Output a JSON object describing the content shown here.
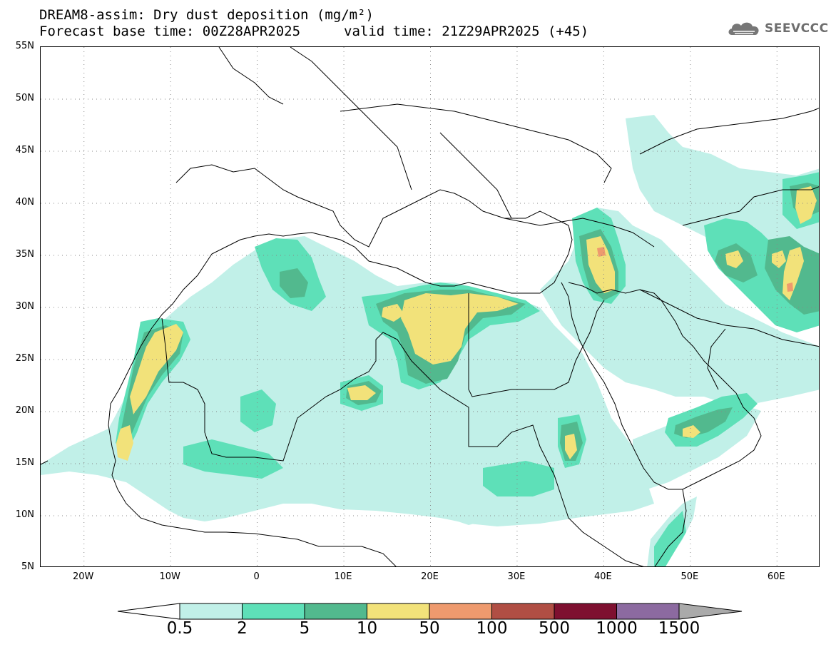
{
  "header": {
    "title": "DREAM8-assim: Dry dust deposition (mg/m²)",
    "base_time": "Forecast base time: 00Z28APR2025",
    "valid_time": "valid time: 21Z29APR2025 (+45)",
    "logo_text": "SEEVCCC"
  },
  "axes": {
    "lat_labels": [
      "55N",
      "50N",
      "45N",
      "40N",
      "35N",
      "30N",
      "25N",
      "20N",
      "15N",
      "10N",
      "5N"
    ],
    "lon_labels": [
      "20W",
      "10W",
      "0",
      "10E",
      "20E",
      "30E",
      "40E",
      "50E",
      "60E"
    ]
  },
  "colorbar": {
    "labels": [
      "0.5",
      "2",
      "5",
      "10",
      "50",
      "100",
      "500",
      "1000",
      "1500"
    ],
    "colors": [
      "#c1f0e8",
      "#5ee0b8",
      "#52b98e",
      "#f2e27a",
      "#ee9a6e",
      "#b04e44",
      "#7e1030",
      "#8c6aa0",
      "#aaaaaa"
    ]
  },
  "map": {
    "lon_range": [
      -25,
      65
    ],
    "lat_range": [
      5,
      55
    ],
    "level_colors": {
      "l1": "#c1f0e8",
      "l2": "#5ee0b8",
      "l3": "#52b98e",
      "l4": "#f2e27a",
      "l5": "#ee9a6e"
    }
  }
}
